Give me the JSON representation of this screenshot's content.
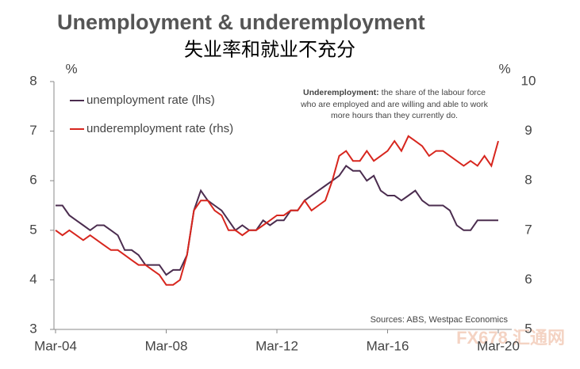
{
  "chart_data": {
    "type": "line",
    "title": "Unemployment & underemployment",
    "subtitle": "失业率和就业不充分",
    "y_unit": "%",
    "y2_unit": "%",
    "annotation": {
      "label": "Underemployment:",
      "lines": [
        "the share of the labour force",
        "who are employed and are willing and able to work",
        "more hours than they currently do."
      ]
    },
    "source": "Sources: ABS, Westpac Economics",
    "watermark": "FX678 汇通网",
    "categories": [
      "Mar-04",
      null,
      null,
      null,
      null,
      null,
      null,
      null,
      null,
      null,
      null,
      null,
      null,
      null,
      null,
      null,
      "Mar-08",
      null,
      null,
      null,
      null,
      null,
      null,
      null,
      null,
      null,
      null,
      null,
      null,
      null,
      null,
      null,
      "Mar-12",
      null,
      null,
      null,
      null,
      null,
      null,
      null,
      null,
      null,
      null,
      null,
      null,
      null,
      null,
      null,
      "Mar-16",
      null,
      null,
      null,
      null,
      null,
      null,
      null,
      null,
      null,
      null,
      null,
      null,
      null,
      null,
      null,
      "Mar-20"
    ],
    "series": [
      {
        "name": "unemployment rate (lhs)",
        "color": "#4b2d4f",
        "axis": "y",
        "values": [
          5.5,
          5.5,
          5.3,
          5.2,
          5.1,
          5.0,
          5.1,
          5.1,
          5.0,
          4.9,
          4.6,
          4.6,
          4.5,
          4.3,
          4.3,
          4.3,
          4.1,
          4.2,
          4.2,
          4.5,
          5.4,
          5.8,
          5.6,
          5.5,
          5.4,
          5.2,
          5.0,
          5.1,
          5.0,
          5.0,
          5.2,
          5.1,
          5.2,
          5.2,
          5.4,
          5.4,
          5.6,
          5.7,
          5.8,
          5.9,
          6.0,
          6.1,
          6.3,
          6.2,
          6.2,
          6.0,
          6.1,
          5.8,
          5.7,
          5.7,
          5.6,
          5.7,
          5.8,
          5.6,
          5.5,
          5.5,
          5.5,
          5.4,
          5.1,
          5.0,
          5.0,
          5.2,
          5.2,
          5.2,
          5.2
        ]
      },
      {
        "name": "underemployment rate (rhs)",
        "color": "#d7261e",
        "axis": "y2",
        "values": [
          7.0,
          6.9,
          7.0,
          6.9,
          6.8,
          6.9,
          6.8,
          6.7,
          6.6,
          6.6,
          6.5,
          6.4,
          6.3,
          6.3,
          6.2,
          6.1,
          5.9,
          5.9,
          6.0,
          6.5,
          7.4,
          7.6,
          7.6,
          7.4,
          7.3,
          7.0,
          7.0,
          6.9,
          7.0,
          7.0,
          7.1,
          7.2,
          7.3,
          7.3,
          7.4,
          7.4,
          7.6,
          7.4,
          7.5,
          7.6,
          8.0,
          8.5,
          8.6,
          8.4,
          8.4,
          8.6,
          8.4,
          8.5,
          8.6,
          8.8,
          8.6,
          8.9,
          8.8,
          8.7,
          8.5,
          8.6,
          8.6,
          8.5,
          8.4,
          8.3,
          8.4,
          8.3,
          8.5,
          8.3,
          8.8
        ]
      }
    ],
    "ylim": [
      3,
      8
    ],
    "yticks": [
      3,
      4,
      5,
      6,
      7,
      8
    ],
    "y2lim": [
      5,
      10
    ],
    "y2ticks": [
      5,
      6,
      7,
      8,
      9,
      10
    ]
  }
}
